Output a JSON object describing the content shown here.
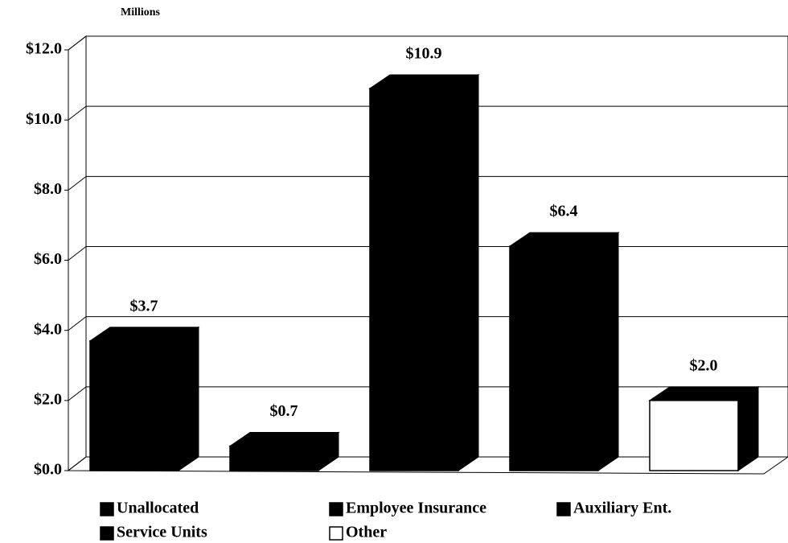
{
  "chart_data": {
    "type": "bar",
    "y_label": "Millions",
    "categories": [
      "Unallocated",
      "Employee Insurance",
      "Auxiliary Ent.",
      "Service Units",
      "Other"
    ],
    "values": [
      3.7,
      0.7,
      10.9,
      6.4,
      2.0
    ],
    "value_labels": [
      "$3.7",
      "$0.7",
      "$10.9",
      "$6.4",
      "$2.0"
    ],
    "colors": [
      "#000000",
      "#000000",
      "#000000",
      "#000000",
      "#ffffff"
    ],
    "ylim": [
      0,
      12
    ],
    "yticks": [
      {
        "value": 0,
        "label": "$0.0"
      },
      {
        "value": 2,
        "label": "$2.0"
      },
      {
        "value": 4,
        "label": "$4.0"
      },
      {
        "value": 6,
        "label": "$6.0"
      },
      {
        "value": 8,
        "label": "$8.0"
      },
      {
        "value": 10,
        "label": "$10.0"
      },
      {
        "value": 12,
        "label": "$12.0"
      }
    ],
    "grid": true
  }
}
